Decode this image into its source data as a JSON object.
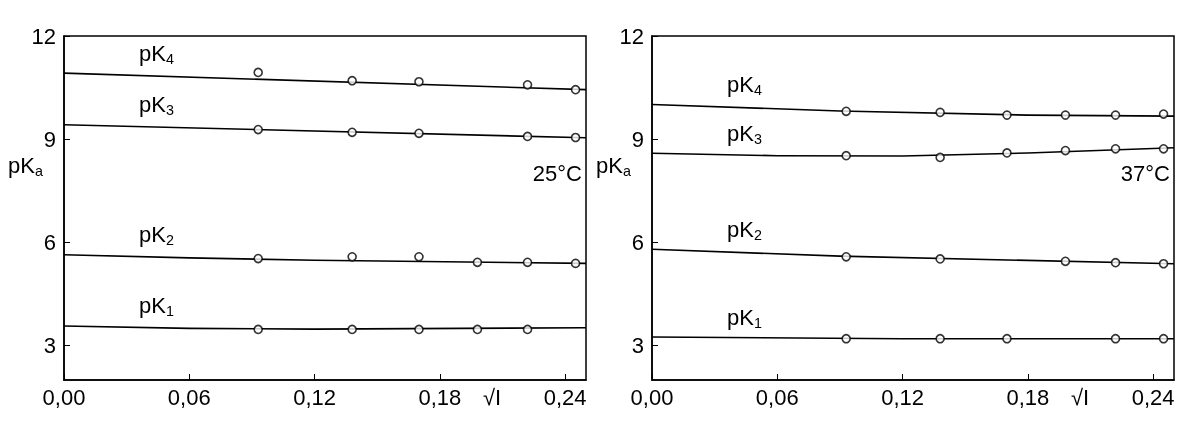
{
  "chart_data": [
    {
      "type": "scatter",
      "xlabel": "√I",
      "ylabel": "pK$_{a}$",
      "xlim": [
        0,
        0.25
      ],
      "xticks": [
        {
          "value": 0,
          "label": "0,00"
        },
        {
          "value": 0.06,
          "label": "0,06"
        },
        {
          "value": 0.12,
          "label": "0,12"
        },
        {
          "value": 0.18,
          "label": "0,18"
        },
        {
          "value": 0.24,
          "label": "0,24"
        }
      ],
      "ylim": [
        2,
        12
      ],
      "yticks": [
        3,
        6,
        9,
        12
      ],
      "marker": "circle",
      "line_style": "solid",
      "series": [
        {
          "type": "line",
          "marker": "none",
          "name": "pK$_{4}$",
          "color": "#000000",
          "x": [
            0,
            0.25
          ],
          "values": [
            10.92,
            10.44
          ]
        },
        {
          "color": "#000000",
          "x": [
            0.093,
            0.138,
            0.17,
            0.222,
            0.245
          ],
          "values": [
            10.94,
            10.7,
            10.67,
            10.58,
            10.44
          ]
        },
        {
          "type": "line",
          "marker": "none",
          "name": "pK$_{3}$",
          "color": "#000000",
          "x": [
            0,
            0.25
          ],
          "values": [
            9.42,
            9.04
          ]
        },
        {
          "color": "#000000",
          "x": [
            0.093,
            0.138,
            0.17,
            0.222,
            0.245
          ],
          "values": [
            9.28,
            9.2,
            9.17,
            9.08,
            9.05
          ]
        },
        {
          "type": "line",
          "marker": "none",
          "name": "pK$_{2}$",
          "color": "#000000",
          "x": [
            0,
            0.06,
            0.12,
            0.25
          ],
          "values": [
            5.64,
            5.55,
            5.48,
            5.39
          ]
        },
        {
          "color": "#000000",
          "x": [
            0.093,
            0.138,
            0.17,
            0.198,
            0.222,
            0.245
          ],
          "values": [
            5.53,
            5.58,
            5.58,
            5.42,
            5.42,
            5.39
          ]
        },
        {
          "type": "line",
          "marker": "none",
          "name": "pK$_{1}$",
          "color": "#000000",
          "x": [
            0,
            0.06,
            0.12,
            0.25
          ],
          "values": [
            3.57,
            3.5,
            3.48,
            3.52
          ]
        },
        {
          "color": "#000000",
          "x": [
            0.093,
            0.138,
            0.17,
            0.198,
            0.222
          ],
          "values": [
            3.47,
            3.47,
            3.47,
            3.47,
            3.47
          ]
        }
      ],
      "annotations": [
        "25°C"
      ]
    },
    {
      "type": "scatter",
      "xlabel": "√I",
      "ylabel": "pK$_{a}$",
      "xlim": [
        0,
        0.25
      ],
      "xticks": [
        {
          "value": 0,
          "label": "0,00"
        },
        {
          "value": 0.06,
          "label": "0,06"
        },
        {
          "value": 0.12,
          "label": "0,12"
        },
        {
          "value": 0.18,
          "label": "0,18"
        },
        {
          "value": 0.24,
          "label": "0,24"
        }
      ],
      "ylim": [
        2,
        12
      ],
      "yticks": [
        3,
        6,
        9,
        12
      ],
      "marker": "circle",
      "line_style": "solid",
      "series": [
        {
          "type": "line",
          "marker": "none",
          "name": "pK$_{4}$",
          "color": "#000000",
          "x": [
            0,
            0.09,
            0.18,
            0.25
          ],
          "values": [
            10.01,
            9.82,
            9.7,
            9.67
          ]
        },
        {
          "color": "#000000",
          "x": [
            0.093,
            0.138,
            0.17,
            0.198,
            0.222,
            0.245
          ],
          "values": [
            9.81,
            9.78,
            9.7,
            9.7,
            9.7,
            9.73
          ]
        },
        {
          "type": "line",
          "marker": "none",
          "name": "pK$_{3}$",
          "color": "#000000",
          "x": [
            0,
            0.06,
            0.12,
            0.18,
            0.25
          ],
          "values": [
            8.59,
            8.52,
            8.51,
            8.6,
            8.75
          ]
        },
        {
          "color": "#000000",
          "x": [
            0.093,
            0.138,
            0.17,
            0.198,
            0.222,
            0.245
          ],
          "values": [
            8.52,
            8.47,
            8.6,
            8.67,
            8.72,
            8.72
          ]
        },
        {
          "type": "line",
          "marker": "none",
          "name": "pK$_{2}$",
          "color": "#000000",
          "x": [
            0,
            0.09,
            0.25
          ],
          "values": [
            5.8,
            5.6,
            5.38
          ]
        },
        {
          "color": "#000000",
          "x": [
            0.093,
            0.138,
            0.198,
            0.222,
            0.245
          ],
          "values": [
            5.58,
            5.52,
            5.45,
            5.41,
            5.38
          ]
        },
        {
          "type": "line",
          "marker": "none",
          "name": "pK$_{1}$",
          "color": "#000000",
          "x": [
            0,
            0.12,
            0.25
          ],
          "values": [
            3.25,
            3.2,
            3.2
          ]
        },
        {
          "color": "#000000",
          "x": [
            0.093,
            0.138,
            0.17,
            0.222,
            0.245
          ],
          "values": [
            3.2,
            3.2,
            3.2,
            3.2,
            3.2
          ]
        }
      ],
      "annotations": [
        "37°C"
      ]
    }
  ]
}
